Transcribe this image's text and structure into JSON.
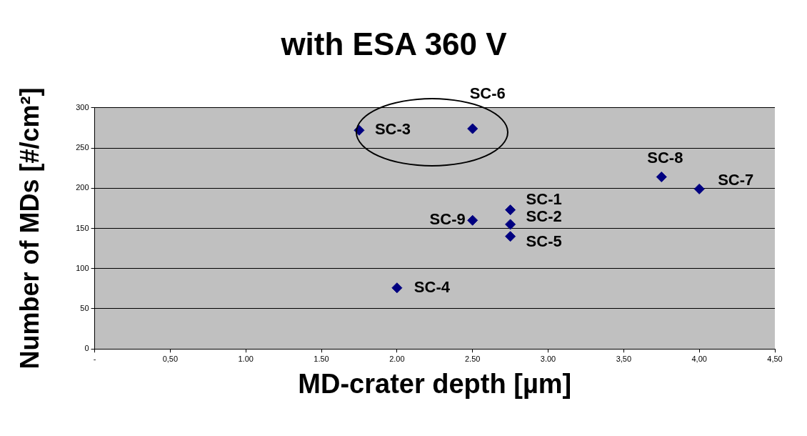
{
  "chart_data": {
    "type": "scatter",
    "title": "with ESA 360 V",
    "xlabel": "MD-crater depth [µm]",
    "ylabel": "Number of MDs [#/cm²]",
    "x": [
      2.75,
      2.75,
      1.75,
      2.0,
      2.75,
      2.5,
      4.0,
      3.75,
      2.5
    ],
    "series": [
      {
        "color": "#000080",
        "values": [
          173,
          155,
          272,
          76,
          140,
          274,
          199,
          214,
          160
        ]
      }
    ],
    "marker": "diamond",
    "grid": "y",
    "xlim": [
      0,
      4.5
    ],
    "xticks": [
      {
        "value": 0,
        "label": "-"
      },
      {
        "value": 0.5,
        "label": "0,50"
      },
      {
        "value": 1,
        "label": "1.00"
      },
      {
        "value": 1.5,
        "label": "1.50"
      },
      {
        "value": 2,
        "label": "2.00"
      },
      {
        "value": 2.5,
        "label": "2.50"
      },
      {
        "value": 3,
        "label": "3.00"
      },
      {
        "value": 3.5,
        "label": "3,50"
      },
      {
        "value": 4,
        "label": "4,00"
      },
      {
        "value": 4.5,
        "label": "4,50"
      }
    ],
    "ylim": [
      0,
      300
    ],
    "yticks": [
      0,
      50,
      100,
      150,
      200,
      250,
      300
    ],
    "annotations": [
      {
        "text": "SC-1",
        "x": 2.75,
        "y": 173
      },
      {
        "text": "SC-2",
        "x": 2.75,
        "y": 155
      },
      {
        "text": "SC-3",
        "x": 1.75,
        "y": 272
      },
      {
        "text": "SC-4",
        "x": 2.0,
        "y": 76
      },
      {
        "text": "SC-5",
        "x": 2.75,
        "y": 140
      },
      {
        "text": "SC-6",
        "x": 2.5,
        "y": 274
      },
      {
        "text": "SC-7",
        "x": 4.0,
        "y": 199
      },
      {
        "text": "SC-8",
        "x": 3.75,
        "y": 214
      },
      {
        "text": "SC-9",
        "x": 2.5,
        "y": 160
      }
    ]
  }
}
